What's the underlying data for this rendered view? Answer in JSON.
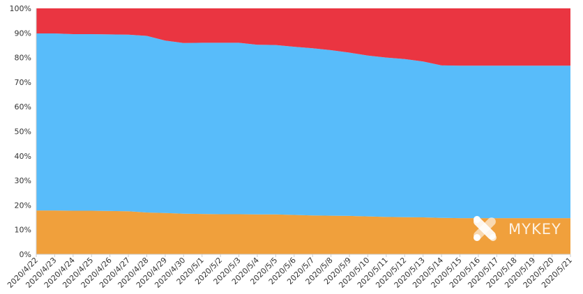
{
  "chart_data": {
    "type": "area",
    "stacked": true,
    "percent": true,
    "title": "",
    "xlabel": "",
    "ylabel": "",
    "ylim": [
      0,
      100
    ],
    "y_ticks": [
      "0%",
      "10%",
      "20%",
      "30%",
      "40%",
      "50%",
      "60%",
      "70%",
      "80%",
      "90%",
      "100%"
    ],
    "x": [
      "2020/4/22",
      "2020/4/23",
      "2020/4/24",
      "2020/4/25",
      "2020/4/26",
      "2020/4/27",
      "2020/4/28",
      "2020/4/29",
      "2020/4/30",
      "2020/5/1",
      "2020/5/2",
      "2020/5/3",
      "2020/5/4",
      "2020/5/5",
      "2020/5/6",
      "2020/5/7",
      "2020/5/8",
      "2020/5/9",
      "2020/5/10",
      "2020/5/11",
      "2020/5/12",
      "2020/5/13",
      "2020/5/14",
      "2020/5/15",
      "2020/5/16",
      "2020/5/17",
      "2020/5/18",
      "2020/5/19",
      "2020/5/20",
      "2020/5/21"
    ],
    "grid": false,
    "legend": "none",
    "series": [
      {
        "color": "#F0A03C",
        "values": [
          17.8,
          17.8,
          17.7,
          17.7,
          17.6,
          17.5,
          17.0,
          16.8,
          16.5,
          16.4,
          16.3,
          16.3,
          16.2,
          16.2,
          16.0,
          15.8,
          15.7,
          15.6,
          15.4,
          15.2,
          15.1,
          15.0,
          14.8,
          14.7,
          14.7,
          14.7,
          14.7,
          14.7,
          14.7,
          14.7
        ]
      },
      {
        "color": "#58BCFA",
        "values": [
          72.0,
          72.0,
          71.8,
          71.8,
          71.8,
          71.8,
          71.8,
          70.1,
          69.4,
          69.6,
          69.7,
          69.7,
          69.0,
          68.9,
          68.4,
          68.0,
          67.3,
          66.4,
          65.4,
          64.8,
          64.3,
          63.4,
          62.0,
          62.0,
          62.0,
          62.0,
          62.0,
          62.0,
          62.0,
          62.0
        ]
      },
      {
        "color": "#EA3541",
        "values": [
          10.2,
          10.2,
          10.5,
          10.5,
          10.6,
          10.7,
          11.2,
          13.1,
          14.1,
          14.0,
          14.0,
          14.0,
          14.8,
          14.9,
          15.6,
          16.2,
          17.0,
          18.0,
          19.2,
          20.0,
          20.6,
          21.6,
          23.2,
          23.3,
          23.3,
          23.3,
          23.3,
          23.3,
          23.3,
          23.3
        ]
      }
    ]
  },
  "watermark": {
    "text": "MYKEY"
  }
}
